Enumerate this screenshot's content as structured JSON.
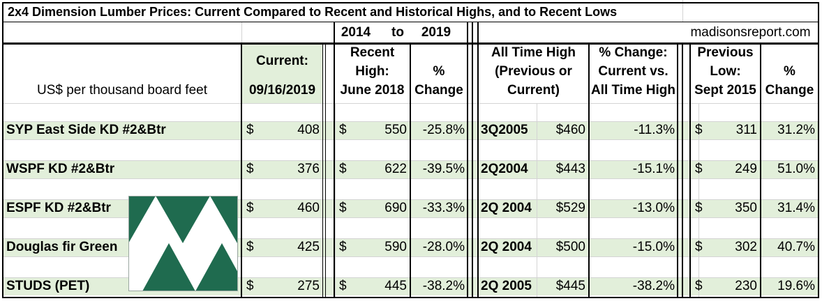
{
  "title": "2x4 Dimension Lumber Prices: Current Compared to Recent and Historical Highs, and to Recent Lows",
  "range": {
    "start": "2014",
    "to": "to",
    "end": "2019"
  },
  "source": "madisonsreport.com",
  "headers": {
    "units": "US$ per thousand board feet",
    "current_l1": "Current:",
    "current_l2": "09/16/2019",
    "recent_l1": "Recent",
    "recent_l2": "High:",
    "recent_l3": "June 2018",
    "pct_l1": "%",
    "pct_l2": "Change",
    "ath_l1": "All Time High",
    "ath_l2": "(Previous or",
    "ath_l3": "Current)",
    "athpct_l1": "% Change:",
    "athpct_l2": "Current vs.",
    "athpct_l3": "All Time High",
    "low_l1": "Previous",
    "low_l2": "Low:",
    "low_l3": "Sept 2015",
    "lowpct_l1": "%",
    "lowpct_l2": "Change"
  },
  "chart_data": {
    "type": "table",
    "title": "2x4 Dimension Lumber Prices: Current Compared to Recent and Historical Highs, and to Recent Lows",
    "columns": [
      "US$ per thousand board feet",
      "Current: 09/16/2019",
      "Recent High: June 2018",
      "% Change",
      "All Time High (Previous or Current) period",
      "All Time High (Previous or Current) price",
      "% Change: Current vs. All Time High",
      "Previous Low: Sept 2015",
      "% Change"
    ],
    "rows": [
      {
        "label": "SYP East Side KD #2&Btr",
        "cur_sym": "$",
        "current": "408",
        "rec_sym": "$",
        "recent_high": "550",
        "recent_pct": "-25.8%",
        "ath_period": "3Q2005",
        "ath_price": "$460",
        "ath_pct": "-11.3%",
        "low_sym": "$",
        "low": "311",
        "low_pct": "31.2%"
      },
      {
        "label": "WSPF KD #2&Btr",
        "cur_sym": "$",
        "current": "376",
        "rec_sym": "$",
        "recent_high": "622",
        "recent_pct": "-39.5%",
        "ath_period": "2Q2004",
        "ath_price": "$443",
        "ath_pct": "-15.1%",
        "low_sym": "$",
        "low": "249",
        "low_pct": "51.0%"
      },
      {
        "label": "ESPF KD #2&Btr",
        "cur_sym": "$",
        "current": "460",
        "rec_sym": "$",
        "recent_high": "690",
        "recent_pct": "-33.3%",
        "ath_period": "2Q 2004",
        "ath_price": "$529",
        "ath_pct": "-13.0%",
        "low_sym": "$",
        "low": "350",
        "low_pct": "31.4%"
      },
      {
        "label": "Douglas fir Green",
        "cur_sym": "$",
        "current": "425",
        "rec_sym": "$",
        "recent_high": "590",
        "recent_pct": "-28.0%",
        "ath_period": "2Q 2004",
        "ath_price": "$500",
        "ath_pct": "-15.0%",
        "low_sym": "$",
        "low": "302",
        "low_pct": "40.7%"
      },
      {
        "label": "STUDS (PET)",
        "cur_sym": "$",
        "current": "275",
        "rec_sym": "$",
        "recent_high": "445",
        "recent_pct": "-38.2%",
        "ath_period": "2Q 2005",
        "ath_price": "$445",
        "ath_pct": "-38.2%",
        "low_sym": "$",
        "low": "230",
        "low_pct": "19.6%"
      }
    ]
  },
  "colors": {
    "band": "#e2efda",
    "logo": "#1f6b4f",
    "border": "#000000"
  },
  "logo_icon": "madisons-triangle-logo-icon"
}
